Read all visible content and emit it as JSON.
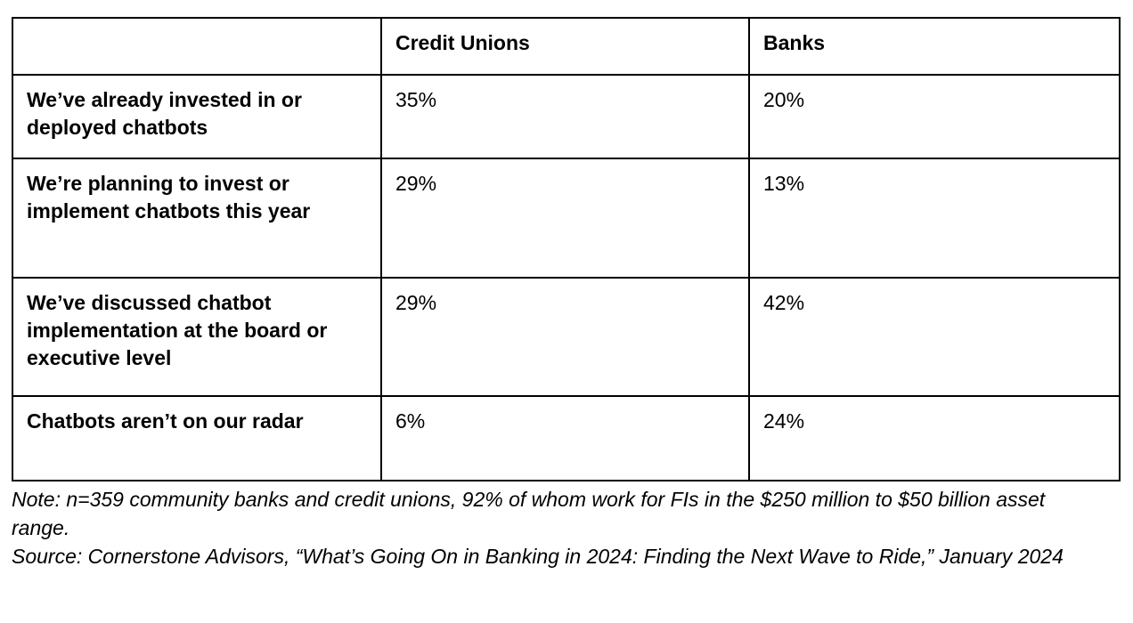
{
  "chart_data": {
    "type": "table",
    "columns": [
      "",
      "Credit Unions",
      "Banks"
    ],
    "rows": [
      {
        "label": "We’ve already invested in or deployed chatbots",
        "credit_unions": "35%",
        "banks": "20%"
      },
      {
        "label": "We’re planning to invest or implement chatbots this year",
        "credit_unions": "29%",
        "banks": "13%"
      },
      {
        "label": "We’ve discussed chatbot implementation at the board or executive level",
        "credit_unions": "29%",
        "banks": "42%"
      },
      {
        "label": "Chatbots aren’t on our radar",
        "credit_unions": "6%",
        "banks": "24%"
      }
    ],
    "values_unit": "%",
    "series": [
      {
        "name": "Credit Unions",
        "values": [
          35,
          29,
          29,
          6
        ]
      },
      {
        "name": "Banks",
        "values": [
          20,
          13,
          42,
          24
        ]
      }
    ],
    "categories": [
      "We’ve already invested in or deployed chatbots",
      "We’re planning to invest or implement chatbots this year",
      "We’ve discussed chatbot implementation at the board or executive level",
      "Chatbots aren’t on our radar"
    ]
  },
  "footer": {
    "note": "Note: n=359 community banks and credit unions, 92% of whom work for FIs in the $250 million to $50 billion asset range.",
    "source": "Source: Cornerstone Advisors, “What’s Going On in Banking in 2024: Finding the Next Wave to Ride,” January 2024"
  },
  "colors": {
    "border": "#000000",
    "text": "#000000",
    "background": "#ffffff"
  }
}
